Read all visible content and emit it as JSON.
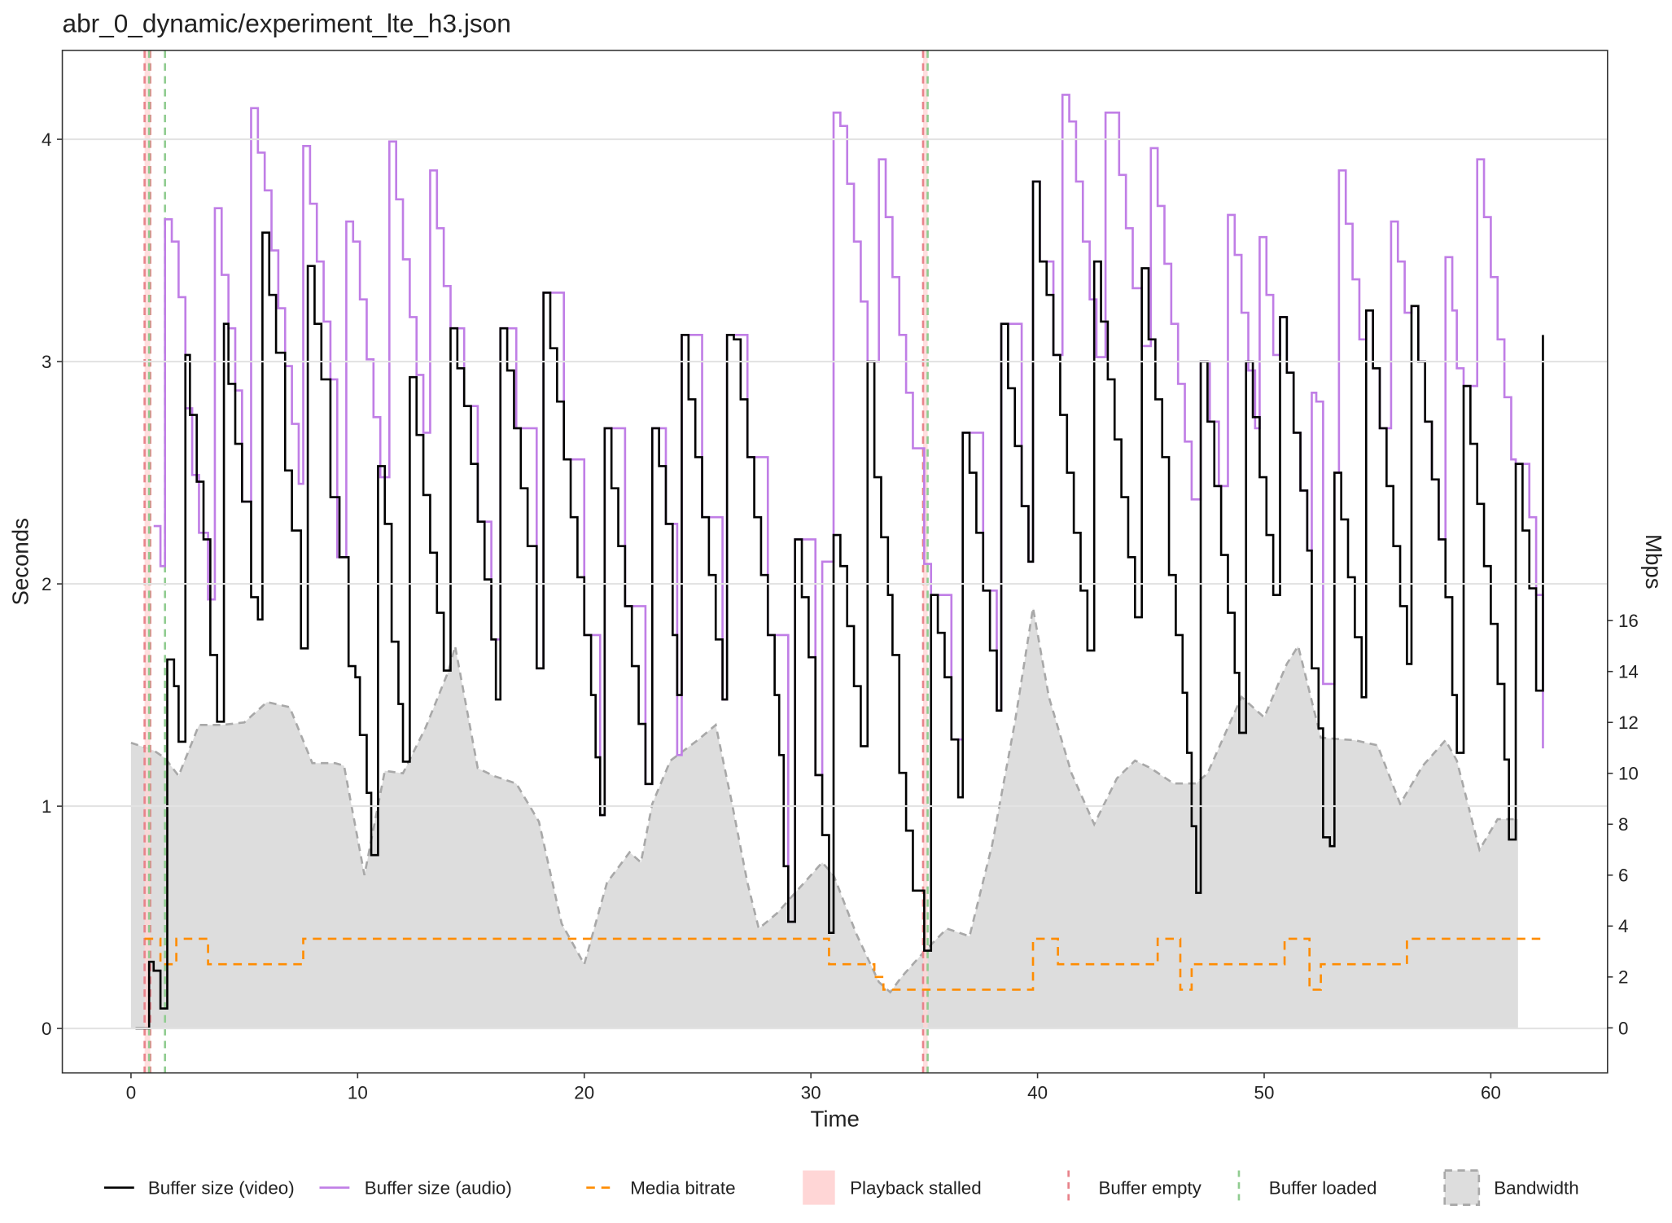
{
  "chart_data": {
    "type": "line",
    "title": "abr_0_dynamic/experiment_lte_h3.json",
    "x_label": "Time",
    "y_label": "Seconds",
    "y2_label": "Mbps",
    "xlim": [
      -3.03,
      65.15
    ],
    "ylim": [
      -0.2,
      4.4
    ],
    "y2lim": [
      -1.77,
      38.4
    ],
    "xticks": [
      0,
      10,
      20,
      30,
      40,
      50,
      60
    ],
    "yticks": [
      0,
      1,
      2,
      3,
      4
    ],
    "y2ticks": [
      0,
      2,
      4,
      6,
      8,
      10,
      12,
      14,
      16
    ],
    "grid": true,
    "legend": "bottom",
    "series": [
      {
        "name": "Buffer size (video)",
        "color": "#000000",
        "step": true,
        "x": [
          0.2,
          0.8,
          1.0,
          1.3,
          1.6,
          1.9,
          2.1,
          2.4,
          2.6,
          2.9,
          3.2,
          3.5,
          3.8,
          4.1,
          4.3,
          4.6,
          4.9,
          5.3,
          5.6,
          5.8,
          6.1,
          6.4,
          6.8,
          7.1,
          7.5,
          7.8,
          8.1,
          8.4,
          8.8,
          9.2,
          9.6,
          9.9,
          10.1,
          10.4,
          10.6,
          10.9,
          11.2,
          11.5,
          11.8,
          12.0,
          12.3,
          12.6,
          12.9,
          13.2,
          13.5,
          13.8,
          14.1,
          14.4,
          14.7,
          15.0,
          15.3,
          15.6,
          15.9,
          16.1,
          16.3,
          16.6,
          16.9,
          17.2,
          17.5,
          17.9,
          18.2,
          18.5,
          18.8,
          19.1,
          19.4,
          19.7,
          20.0,
          20.3,
          20.5,
          20.7,
          20.9,
          21.2,
          21.5,
          21.8,
          22.1,
          22.4,
          22.7,
          23.0,
          23.3,
          23.6,
          23.9,
          24.1,
          24.3,
          24.6,
          24.9,
          25.2,
          25.5,
          25.8,
          26.1,
          26.3,
          26.6,
          26.9,
          27.2,
          27.5,
          27.8,
          28.1,
          28.4,
          28.6,
          28.8,
          29.0,
          29.3,
          29.6,
          29.9,
          30.2,
          30.5,
          30.8,
          31.0,
          31.3,
          31.6,
          31.9,
          32.2,
          32.5,
          32.8,
          33.1,
          33.4,
          33.6,
          33.9,
          34.2,
          34.5,
          35.0,
          35.3,
          35.6,
          35.9,
          36.2,
          36.5,
          36.7,
          37.0,
          37.3,
          37.6,
          37.9,
          38.2,
          38.4,
          38.7,
          39.0,
          39.3,
          39.6,
          39.8,
          40.1,
          40.4,
          40.7,
          41.0,
          41.3,
          41.6,
          41.9,
          42.2,
          42.5,
          42.8,
          43.1,
          43.4,
          43.7,
          44.0,
          44.3,
          44.6,
          44.9,
          45.2,
          45.5,
          45.8,
          46.1,
          46.4,
          46.6,
          46.8,
          47.0,
          47.2,
          47.5,
          47.8,
          48.1,
          48.4,
          48.7,
          48.9,
          49.2,
          49.5,
          49.8,
          50.1,
          50.4,
          50.7,
          51.0,
          51.3,
          51.6,
          51.9,
          52.1,
          52.4,
          52.6,
          52.9,
          53.1,
          53.4,
          53.7,
          54.0,
          54.3,
          54.5,
          54.8,
          55.1,
          55.4,
          55.7,
          56.0,
          56.3,
          56.5,
          56.8,
          57.1,
          57.4,
          57.7,
          58.0,
          58.3,
          58.5,
          58.8,
          59.1,
          59.4,
          59.7,
          60.0,
          60.3,
          60.6,
          60.8,
          61.1,
          61.4,
          61.7,
          62.0,
          62.3
        ],
        "values": [
          0,
          0.3,
          0.26,
          0.09,
          1.66,
          1.54,
          1.29,
          3.03,
          2.76,
          2.46,
          2.2,
          1.68,
          1.38,
          3.17,
          2.9,
          2.63,
          2.37,
          1.94,
          1.84,
          3.58,
          3.3,
          3.04,
          2.51,
          2.24,
          1.71,
          3.43,
          3.17,
          2.92,
          2.39,
          2.12,
          1.63,
          1.58,
          1.32,
          1.06,
          0.78,
          2.53,
          2.27,
          1.74,
          1.46,
          1.2,
          2.93,
          2.67,
          2.4,
          2.14,
          1.87,
          1.61,
          3.15,
          2.97,
          2.8,
          2.54,
          2.28,
          2.02,
          1.75,
          1.48,
          3.15,
          2.96,
          2.7,
          2.43,
          2.17,
          1.62,
          3.31,
          3.06,
          2.82,
          2.56,
          2.3,
          2.03,
          1.77,
          1.5,
          1.22,
          0.96,
          2.7,
          2.43,
          2.17,
          1.9,
          1.63,
          1.37,
          1.1,
          2.7,
          2.53,
          2.27,
          1.77,
          1.5,
          3.12,
          2.83,
          2.57,
          2.3,
          2.04,
          1.75,
          1.48,
          3.12,
          3.1,
          2.83,
          2.57,
          2.3,
          2.04,
          1.77,
          1.5,
          1.23,
          0.73,
          0.48,
          2.2,
          1.94,
          1.67,
          1.14,
          0.87,
          0.43,
          2.22,
          2.08,
          1.81,
          1.54,
          1.27,
          3.0,
          2.48,
          2.21,
          1.95,
          1.68,
          1.15,
          0.89,
          0.62,
          0.35,
          1.95,
          1.78,
          1.58,
          1.3,
          1.04,
          2.68,
          2.5,
          2.23,
          1.97,
          1.7,
          1.43,
          3.17,
          2.88,
          2.62,
          2.35,
          2.1,
          3.81,
          3.45,
          3.3,
          3.03,
          2.76,
          2.5,
          2.23,
          1.97,
          1.7,
          3.45,
          3.18,
          2.92,
          2.65,
          2.39,
          2.12,
          1.85,
          3.42,
          3.1,
          2.83,
          2.57,
          2.04,
          1.77,
          1.51,
          1.24,
          0.91,
          0.61,
          3.0,
          2.73,
          2.44,
          2.13,
          1.87,
          1.6,
          1.33,
          3.0,
          2.75,
          2.48,
          2.22,
          1.95,
          3.2,
          2.95,
          2.68,
          2.42,
          2.15,
          1.62,
          1.35,
          0.86,
          0.82,
          2.5,
          2.29,
          2.03,
          1.76,
          1.49,
          3.23,
          2.97,
          2.7,
          2.44,
          2.17,
          1.9,
          1.64,
          3.25,
          3.0,
          2.73,
          2.47,
          2.2,
          1.94,
          1.5,
          1.24,
          2.89,
          2.63,
          2.36,
          2.08,
          1.82,
          1.55,
          1.21,
          0.85,
          2.54,
          2.24,
          1.98,
          1.52,
          3.12
        ]
      },
      {
        "name": "Buffer size (audio)",
        "color": "#c07ee6",
        "step": true,
        "x": [
          1.0,
          1.3,
          1.5,
          1.8,
          2.1,
          2.4,
          2.7,
          3.0,
          3.4,
          3.7,
          4.0,
          4.3,
          4.6,
          4.9,
          5.3,
          5.6,
          5.9,
          6.2,
          6.5,
          6.8,
          7.1,
          7.4,
          7.6,
          7.9,
          8.2,
          8.5,
          8.8,
          9.1,
          9.5,
          9.8,
          10.1,
          10.4,
          10.7,
          11.0,
          11.4,
          11.7,
          12.0,
          12.3,
          12.6,
          12.9,
          13.2,
          13.5,
          13.8,
          14.1,
          14.7,
          15.3,
          15.9,
          16.3,
          17.0,
          17.9,
          18.2,
          19.1,
          20.0,
          20.7,
          20.9,
          21.8,
          22.7,
          23.0,
          23.6,
          24.1,
          24.3,
          25.2,
          26.1,
          26.3,
          27.2,
          28.1,
          29.0,
          29.3,
          30.2,
          30.5,
          31.0,
          31.3,
          31.6,
          31.9,
          32.2,
          32.5,
          33.0,
          33.3,
          33.6,
          33.9,
          34.2,
          34.5,
          35.0,
          35.3,
          36.2,
          36.7,
          37.6,
          38.2,
          38.4,
          39.3,
          39.6,
          39.8,
          40.1,
          40.7,
          41.1,
          41.4,
          41.7,
          42.0,
          42.3,
          42.6,
          43.0,
          43.6,
          43.9,
          44.2,
          44.6,
          45.0,
          45.3,
          45.6,
          45.9,
          46.2,
          46.5,
          46.8,
          47.2,
          47.6,
          48.0,
          48.4,
          48.7,
          49.0,
          49.3,
          49.6,
          49.8,
          50.1,
          50.4,
          50.7,
          51.0,
          51.3,
          51.6,
          51.9,
          52.1,
          52.3,
          52.6,
          53.1,
          53.3,
          53.6,
          53.9,
          54.2,
          54.5,
          54.8,
          55.1,
          55.6,
          55.9,
          56.2,
          56.5,
          56.8,
          57.1,
          57.4,
          57.7,
          58.0,
          58.3,
          58.5,
          58.8,
          59.4,
          59.7,
          60.0,
          60.3,
          60.6,
          60.9,
          61.1,
          61.7,
          62.0,
          62.3
        ],
        "values": [
          2.26,
          2.08,
          3.64,
          3.54,
          3.29,
          2.79,
          2.49,
          2.23,
          1.93,
          3.69,
          3.39,
          3.15,
          2.87,
          2.37,
          4.14,
          3.94,
          3.77,
          3.5,
          3.24,
          2.98,
          2.72,
          2.45,
          3.97,
          3.71,
          3.45,
          3.18,
          2.92,
          2.12,
          3.63,
          3.54,
          3.28,
          3.01,
          2.75,
          2.48,
          3.99,
          3.73,
          3.46,
          3.2,
          2.94,
          2.68,
          3.86,
          3.6,
          3.34,
          3.15,
          2.8,
          2.28,
          1.75,
          3.15,
          2.7,
          1.62,
          3.31,
          2.56,
          1.77,
          0.96,
          2.7,
          1.9,
          1.1,
          2.7,
          2.27,
          1.23,
          3.12,
          2.3,
          1.48,
          3.12,
          2.57,
          1.77,
          0.48,
          2.2,
          1.14,
          2.1,
          4.12,
          4.06,
          3.8,
          3.54,
          3.27,
          3.0,
          3.91,
          3.65,
          3.38,
          3.12,
          2.86,
          2.61,
          2.09,
          1.95,
          1.3,
          2.68,
          1.97,
          1.43,
          3.17,
          2.35,
          2.1,
          3.81,
          3.45,
          3.03,
          4.2,
          4.08,
          3.81,
          3.54,
          3.28,
          3.02,
          4.12,
          3.84,
          3.6,
          3.33,
          3.07,
          3.96,
          3.7,
          3.44,
          3.17,
          2.9,
          2.64,
          2.38,
          3.0,
          2.73,
          2.44,
          3.66,
          3.48,
          3.22,
          2.96,
          2.7,
          3.56,
          3.3,
          3.03,
          3.2,
          2.95,
          2.68,
          2.42,
          2.15,
          2.86,
          2.82,
          1.55,
          2.5,
          3.86,
          3.62,
          3.37,
          3.1,
          3.23,
          2.97,
          2.7,
          3.63,
          3.45,
          3.22,
          3.25,
          3.0,
          2.73,
          2.47,
          2.2,
          3.47,
          3.23,
          2.97,
          2.89,
          3.91,
          3.65,
          3.38,
          3.1,
          2.84,
          2.56,
          2.54,
          2.3,
          1.95,
          1.26
        ]
      },
      {
        "name": "Media bitrate",
        "color": "#ff8c00",
        "step": true,
        "dashed": true,
        "axis": "y2",
        "x": [
          0.6,
          1.3,
          2.0,
          3.4,
          7.6,
          30.8,
          32.8,
          33.2,
          39.8,
          40.9,
          45.3,
          46.3,
          46.8,
          50.9,
          52.0,
          52.5,
          56.3,
          62.3
        ],
        "values": [
          3.5,
          2.5,
          3.5,
          2.5,
          3.5,
          2.5,
          2.0,
          1.5,
          3.5,
          2.5,
          3.5,
          1.5,
          2.5,
          3.5,
          1.5,
          2.5,
          3.5,
          3.5
        ]
      },
      {
        "name": "Bandwidth",
        "color": "#dddddd",
        "edge_color": "#a8a8a8",
        "area": true,
        "axis": "y2",
        "x": [
          0,
          1,
          1.5,
          2.1,
          3,
          4,
          5,
          6,
          7,
          8,
          9,
          9.4,
          10.3,
          11.2,
          12,
          13,
          14,
          14.3,
          15.3,
          16,
          17,
          18,
          19,
          20,
          21,
          22,
          22.5,
          23,
          23.8,
          25,
          25.8,
          26.5,
          27.2,
          27.7,
          28.5,
          29.5,
          30.5,
          31,
          32,
          33,
          33.5,
          34,
          35,
          36,
          37,
          38,
          39,
          39.8,
          40.5,
          41.5,
          42.5,
          43.5,
          44.3,
          45,
          46,
          47,
          47.5,
          48.5,
          49,
          50,
          51,
          51.5,
          52.5,
          54,
          55,
          56,
          57,
          58,
          58.5,
          59.5,
          60.3,
          61.2
        ],
        "values": [
          11.2,
          10.9,
          10.6,
          9.9,
          11.9,
          11.9,
          12.0,
          12.8,
          12.6,
          10.4,
          10.4,
          10.3,
          6.0,
          10.1,
          10.0,
          11.8,
          14.0,
          15.0,
          10.2,
          9.9,
          9.6,
          8.1,
          4.1,
          2.5,
          5.7,
          6.9,
          6.5,
          8.8,
          10.5,
          11.3,
          11.9,
          8.9,
          5.7,
          3.9,
          4.5,
          5.5,
          6.5,
          6.0,
          3.7,
          1.8,
          1.4,
          2.0,
          3.0,
          3.9,
          3.6,
          7.2,
          12.0,
          16.5,
          13.0,
          10.0,
          8.0,
          9.8,
          10.5,
          10.2,
          9.6,
          9.6,
          10.0,
          12.0,
          13.0,
          12.2,
          14.3,
          15.0,
          11.4,
          11.3,
          11.1,
          8.8,
          10.3,
          11.3,
          10.5,
          7.0,
          8.2,
          8.2
        ]
      }
    ],
    "events": {
      "stalled": {
        "name": "Playback stalled",
        "color": "#ffd6d6",
        "intervals": [
          [
            0.6,
            0.85
          ],
          [
            34.95,
            35.15
          ]
        ]
      },
      "empty": {
        "name": "Buffer empty",
        "color": "#e8828a",
        "x": [
          0.6,
          0.85,
          34.95
        ]
      },
      "loaded": {
        "name": "Buffer loaded",
        "color": "#90cc90",
        "x": [
          0.8,
          1.5,
          35.15
        ]
      }
    }
  }
}
